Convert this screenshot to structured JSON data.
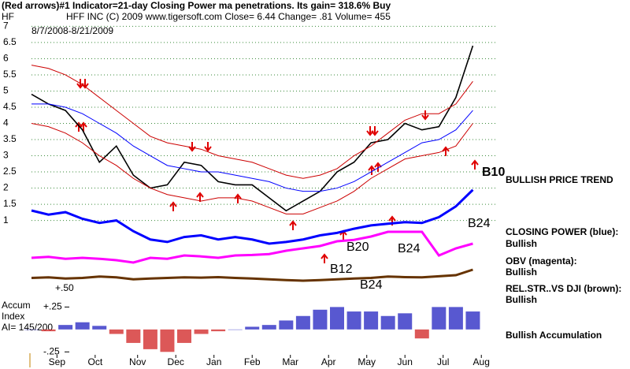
{
  "chart_data": {
    "type": "line",
    "title": "(Red arrows)#1 Indicator=21-day Closing Power ma penetrations.  Its gain= 318.6% Buy",
    "subtitle": "HFF INC       (C) 2009 www.tigersoft.com     Close=  6.44  Change= .81  Volume= 455",
    "ticker": "HF",
    "date_range": "8/7/2008-8/21/2009",
    "x": [
      0,
      2,
      4,
      6,
      8,
      10,
      12,
      14,
      16,
      18,
      20,
      22,
      24,
      26,
      28,
      30,
      32,
      34,
      36,
      38,
      40,
      42,
      44,
      46,
      48,
      50,
      52
    ],
    "xlim": [
      0,
      54
    ],
    "xticks": [
      {
        "value": 3,
        "label": "Sep"
      },
      {
        "value": 7.5,
        "label": "Oct"
      },
      {
        "value": 12.5,
        "label": "Nov"
      },
      {
        "value": 17,
        "label": "Dec"
      },
      {
        "value": 21.5,
        "label": "Jan"
      },
      {
        "value": 26,
        "label": "Feb"
      },
      {
        "value": 30.5,
        "label": "Mar"
      },
      {
        "value": 35,
        "label": "Apr"
      },
      {
        "value": 39.5,
        "label": "May"
      },
      {
        "value": 44,
        "label": "Jun"
      },
      {
        "value": 48.5,
        "label": "Jul"
      },
      {
        "value": 53,
        "label": "Aug"
      }
    ],
    "ylim": [
      0.6,
      7.4
    ],
    "yticks": [
      1,
      1.5,
      2,
      2.5,
      3,
      3.5,
      4,
      4.5,
      5,
      5.5,
      6,
      6.5,
      7
    ],
    "grid": true,
    "series": [
      {
        "color": "#000000",
        "values": [
          4.9,
          4.6,
          4.4,
          3.8,
          2.8,
          3.3,
          2.4,
          2.0,
          2.1,
          2.8,
          2.7,
          2.2,
          2.1,
          2.1,
          1.7,
          1.3,
          1.6,
          1.9,
          2.5,
          2.8,
          3.4,
          3.5,
          4.0,
          3.8,
          3.9,
          4.8,
          6.4
        ]
      },
      {
        "color": "#0000ff",
        "values": [
          4.6,
          4.6,
          4.5,
          4.3,
          4.0,
          3.7,
          3.3,
          3.0,
          2.7,
          2.6,
          2.5,
          2.5,
          2.4,
          2.3,
          2.2,
          2.0,
          1.9,
          1.9,
          2.0,
          2.2,
          2.5,
          2.8,
          3.1,
          3.4,
          3.5,
          3.8,
          4.4
        ]
      },
      {
        "color": "#cc0000",
        "values": [
          5.8,
          5.7,
          5.5,
          5.2,
          4.8,
          4.4,
          4.0,
          3.6,
          3.4,
          3.3,
          3.2,
          3.0,
          2.9,
          2.8,
          2.6,
          2.4,
          2.3,
          2.4,
          2.6,
          3.0,
          3.3,
          3.7,
          4.1,
          4.3,
          4.3,
          4.6,
          5.3
        ]
      },
      {
        "color": "#cc0000",
        "values": [
          4.0,
          3.9,
          3.7,
          3.4,
          3.0,
          2.7,
          2.3,
          2.0,
          1.8,
          1.7,
          1.6,
          1.7,
          1.7,
          1.6,
          1.4,
          1.2,
          1.2,
          1.4,
          1.6,
          1.9,
          2.3,
          2.6,
          2.9,
          3.0,
          3.1,
          3.3,
          4.0
        ]
      }
    ],
    "indicators": [
      {
        "color": "#0000ff",
        "ylim": [
          0,
          10
        ],
        "values": [
          6,
          5.5,
          5.8,
          5.0,
          4.5,
          4.8,
          3.5,
          2.5,
          2.2,
          2.8,
          3.0,
          2.5,
          2.8,
          2.5,
          2.0,
          2.2,
          2.5,
          3.0,
          3.3,
          3.8,
          4.2,
          4.4,
          4.6,
          4.5,
          5.2,
          6.5,
          8.5
        ]
      },
      {
        "color": "#ff00ff",
        "ylim": [
          0,
          10
        ],
        "values": [
          3,
          3.2,
          2.8,
          3.0,
          2.8,
          2.5,
          2.0,
          3.0,
          2.8,
          3.5,
          3.3,
          3.0,
          3.5,
          3.6,
          3.8,
          4.5,
          5.0,
          5.5,
          6.5,
          6.8,
          7.5,
          8.5,
          8.5,
          8.5,
          3.5,
          5.0,
          6.0
        ]
      },
      {
        "color": "#663300",
        "ylim": [
          0,
          10
        ],
        "values": [
          5,
          5.2,
          4.8,
          5,
          5.5,
          5.2,
          4.5,
          4.8,
          5,
          5.2,
          5.1,
          5.3,
          5,
          4.8,
          4.5,
          4.2,
          4.0,
          4.2,
          4.5,
          4.8,
          5,
          5.5,
          5.3,
          5.2,
          5.6,
          6,
          8
        ]
      }
    ],
    "rel_str_tick": {
      "value": 0.5,
      "label": "+.50"
    },
    "accum": {
      "label": [
        "Accum",
        "Index",
        "AI= 145/200"
      ],
      "ylim": [
        -0.3,
        0.35
      ],
      "yticks": [
        {
          "value": 0.25,
          "label": "+.25"
        },
        {
          "value": -0.25,
          "label": "-.25"
        }
      ],
      "values": [
        0.0,
        -0.02,
        0.05,
        0.08,
        0.04,
        -0.05,
        -0.15,
        -0.22,
        -0.25,
        -0.15,
        -0.05,
        -0.02,
        0.0,
        0.03,
        0.05,
        0.1,
        0.15,
        0.22,
        0.25,
        0.2,
        0.2,
        0.15,
        0.18,
        -0.1,
        0.25,
        0.25,
        0.2
      ]
    },
    "annotations": [
      "B10",
      "BULLISH PRICE TREND",
      "B24",
      "CLOSING POWER (blue):",
      "Bullish",
      "OBV (magenta):",
      "Bullish",
      "REL.STR..VS DJI (brown):",
      "Bullish",
      "Bullish Accumulation",
      "B20",
      "B24",
      "B12",
      "B24"
    ]
  }
}
